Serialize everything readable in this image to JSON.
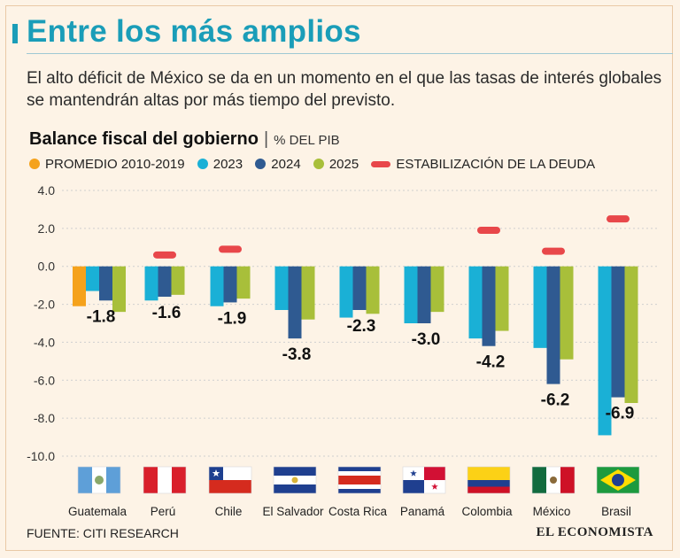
{
  "header": {
    "title": "Entre los más amplios",
    "subtitle": "El alto déficit de México se da en un momento en el que las tasas de interés globales se mantendrán altas por más tiempo del previsto."
  },
  "chart_header": {
    "title": "Balance fiscal del gobierno",
    "separator": "|",
    "unit": "% DEL PIB"
  },
  "colors": {
    "promedio": "#f5a21c",
    "y2023": "#1ab0d6",
    "y2024": "#2f5a91",
    "y2025": "#a8bf3a",
    "estabilizacion": "#e8474a",
    "accent": "#1a9db8"
  },
  "legend": [
    {
      "label": "PROMEDIO 2010-2019",
      "key": "promedio",
      "shape": "dot"
    },
    {
      "label": "2023",
      "key": "y2023",
      "shape": "dot"
    },
    {
      "label": "2024",
      "key": "y2024",
      "shape": "dot"
    },
    {
      "label": "2025",
      "key": "y2025",
      "shape": "dot"
    },
    {
      "label": "ESTABILIZACIÓN DE LA DEUDA",
      "key": "estabilizacion",
      "shape": "dash"
    }
  ],
  "chart_data": {
    "type": "bar",
    "title": "Balance fiscal del gobierno",
    "ylabel": "% DEL PIB",
    "ylim": [
      -10.0,
      4.0
    ],
    "yticks": [
      "4.0",
      "2.0",
      "0.0",
      "-2.0",
      "-4.0",
      "-6.0",
      "-8.0",
      "-10.0"
    ],
    "categories": [
      "Guatemala",
      "Perú",
      "Chile",
      "El Salvador",
      "Costa Rica",
      "Panamá",
      "Colombia",
      "México",
      "Brasil"
    ],
    "series": [
      {
        "name": "PROMEDIO 2010-2019",
        "key": "promedio",
        "values": [
          -2.1,
          null,
          null,
          null,
          null,
          null,
          null,
          null,
          null
        ]
      },
      {
        "name": "2023",
        "key": "y2023",
        "values": [
          -1.3,
          -1.8,
          -2.1,
          -2.3,
          -2.7,
          -3.0,
          -3.8,
          -4.3,
          -8.9
        ]
      },
      {
        "name": "2024",
        "key": "y2024",
        "values": [
          -1.8,
          -1.6,
          -1.9,
          -3.8,
          -2.3,
          -3.0,
          -4.2,
          -6.2,
          -6.9
        ]
      },
      {
        "name": "2025",
        "key": "y2025",
        "values": [
          -2.4,
          -1.5,
          -1.7,
          -2.8,
          -2.5,
          -2.4,
          -3.4,
          -4.9,
          -7.2
        ]
      }
    ],
    "estabilizacion": [
      null,
      0.6,
      0.9,
      null,
      null,
      null,
      1.9,
      0.8,
      2.5
    ],
    "data_labels": [
      "-1.8",
      "-1.6",
      "-1.9",
      "-3.8",
      "-2.3",
      "-3.0",
      "-4.2",
      "-6.2",
      "-6.9"
    ]
  },
  "flags": [
    "guatemala",
    "peru",
    "chile",
    "el-salvador",
    "costa-rica",
    "panama",
    "colombia",
    "mexico",
    "brasil"
  ],
  "footer": {
    "source": "FUENTE: CITI RESEARCH",
    "brand": "EL ECONOMISTA"
  }
}
